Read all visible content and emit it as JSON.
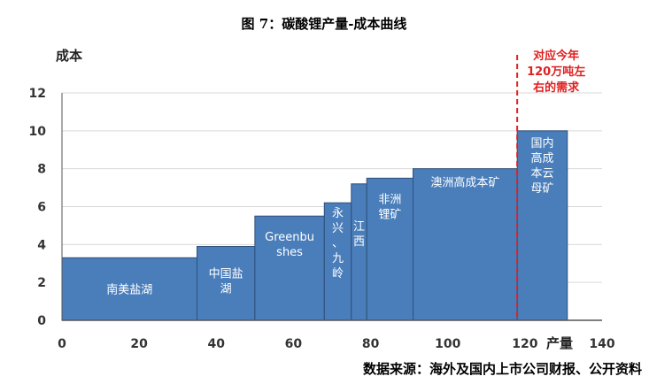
{
  "chart_data": {
    "type": "bar",
    "subtype": "cost-curve",
    "title": "图 7：碳酸锂产量-成本曲线",
    "ylabel": "成本",
    "xlabel": "产量",
    "xlim": [
      0,
      140
    ],
    "ylim": [
      0,
      12
    ],
    "x_ticks": [
      0,
      20,
      40,
      60,
      80,
      100,
      120,
      140
    ],
    "y_ticks": [
      0,
      2,
      4,
      6,
      8,
      10,
      12
    ],
    "grid": true,
    "bar_color": "#4a7ebb",
    "bars": [
      {
        "label": [
          "南美盐湖"
        ],
        "x_start": 0,
        "x_end": 35,
        "value": 3.3
      },
      {
        "label": [
          "中国盐",
          "湖"
        ],
        "x_start": 35,
        "x_end": 50,
        "value": 3.9
      },
      {
        "label": [
          "Greenbu",
          "shes"
        ],
        "x_start": 50,
        "x_end": 68,
        "value": 5.5
      },
      {
        "label": [
          "永",
          "兴",
          "、",
          "九",
          "岭"
        ],
        "x_start": 68,
        "x_end": 75,
        "value": 6.2
      },
      {
        "label": [
          "江",
          "西"
        ],
        "x_start": 75,
        "x_end": 79,
        "value": 7.2
      },
      {
        "label": [
          "非洲",
          "锂矿"
        ],
        "x_start": 79,
        "x_end": 91,
        "value": 7.5
      },
      {
        "label": [
          "澳洲高成本矿"
        ],
        "x_start": 91,
        "x_end": 118,
        "value": 8.0
      },
      {
        "label": [
          "国内",
          "高成",
          "本云",
          "母矿"
        ],
        "x_start": 118,
        "x_end": 131,
        "value": 10.0
      }
    ],
    "demand_line": {
      "x": 118,
      "color": "#e02020",
      "label": [
        "对应今年",
        "120万吨左",
        "右的需求"
      ]
    },
    "source": "数据来源：海外及国内上市公司财报、公开资料"
  }
}
